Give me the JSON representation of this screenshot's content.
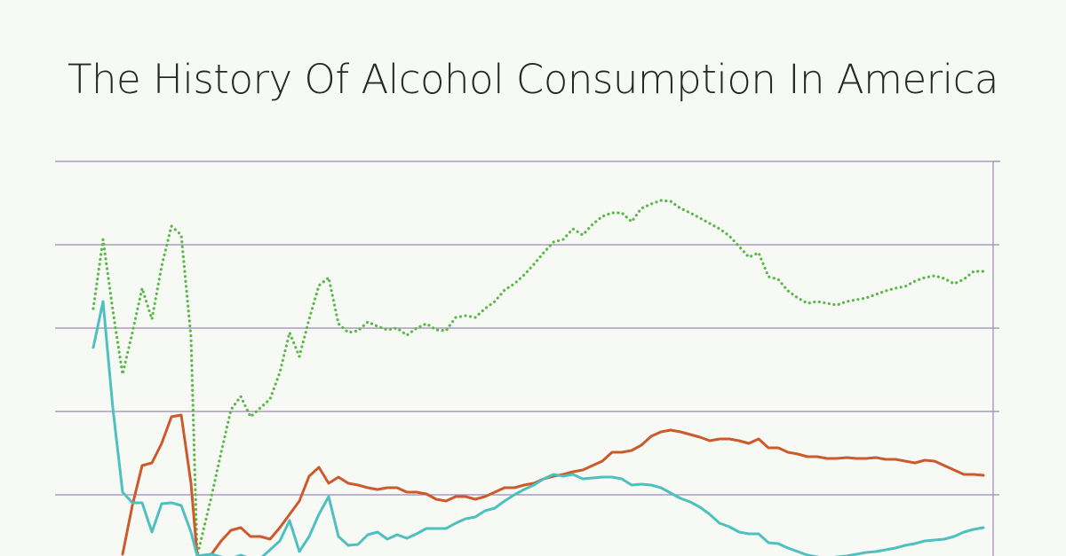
{
  "chart_data": {
    "type": "line",
    "title": "The History Of Alcohol Consumption In America",
    "x": [
      0,
      11,
      22,
      33,
      44,
      55,
      66,
      77,
      88,
      99,
      110,
      117,
      133,
      144,
      155,
      166,
      177,
      188,
      199,
      210,
      221,
      232,
      243,
      254,
      265,
      276,
      287,
      298,
      309,
      320,
      331,
      342,
      353,
      364,
      375,
      386,
      397,
      408,
      419,
      430,
      441,
      452,
      463,
      474,
      485,
      496,
      507,
      518,
      529,
      540,
      551,
      562,
      573,
      584,
      595,
      606,
      617,
      628,
      639,
      650,
      661,
      672,
      683,
      694,
      705,
      716,
      727,
      738,
      749,
      760,
      771,
      782,
      793,
      804,
      815,
      826,
      837,
      848,
      859,
      870,
      881,
      892,
      903,
      914,
      925,
      936,
      947,
      958,
      969,
      980,
      991,
      1002
    ],
    "xlim": [
      -43,
      1020
    ],
    "ylim": [
      25,
      470
    ],
    "yticks": [
      94,
      188,
      282,
      376,
      470
    ],
    "grid": true,
    "series": [
      {
        "color": "#5cb84a",
        "style": "dotted",
        "values": [
          304,
          382,
          302,
          230,
          277,
          327,
          292,
          352,
          397,
          387,
          272,
          25,
          92,
          142,
          190,
          205,
          182,
          192,
          202,
          232,
          277,
          250,
          292,
          330,
          339,
          287,
          277,
          279,
          289,
          284,
          280,
          282,
          274,
          282,
          287,
          280,
          279,
          294,
          296,
          294,
          304,
          312,
          325,
          332,
          342,
          354,
          367,
          379,
          382,
          394,
          387,
          399,
          408,
          412,
          412,
          402,
          417,
          422,
          426,
          425,
          417,
          412,
          406,
          400,
          394,
          386,
          374,
          362,
          367,
          340,
          337,
          324,
          316,
          310,
          312,
          310,
          308,
          312,
          314,
          316,
          320,
          324,
          327,
          329,
          335,
          339,
          341,
          338,
          332,
          337,
          346,
          346
        ]
      },
      {
        "color": "#cc5a2c",
        "style": "solid",
        "values": [
          null,
          null,
          null,
          27,
          82,
          127,
          130,
          152,
          182,
          184,
          107,
          25,
          27,
          42,
          54,
          57,
          47,
          47,
          44,
          57,
          72,
          87,
          115,
          125,
          107,
          114,
          107,
          105,
          102,
          100,
          102,
          102,
          97,
          97,
          95,
          89,
          87,
          92,
          92,
          89,
          92,
          97,
          102,
          102,
          105,
          107,
          112,
          115,
          117,
          120,
          122,
          127,
          132,
          142,
          142,
          144,
          150,
          160,
          165,
          167,
          165,
          162,
          159,
          155,
          157,
          157,
          155,
          152,
          157,
          147,
          147,
          142,
          140,
          137,
          137,
          135,
          135,
          136,
          135,
          135,
          136,
          134,
          134,
          132,
          130,
          133,
          132,
          127,
          122,
          117,
          117,
          116
        ]
      },
      {
        "color": "#4fc0c0",
        "style": "solid",
        "values": [
          260,
          312,
          192,
          97,
          85,
          85,
          52,
          84,
          85,
          82,
          52,
          25,
          27,
          24,
          22,
          26,
          22,
          22,
          32,
          42,
          65,
          30,
          47,
          72,
          92,
          47,
          37,
          38,
          49,
          52,
          44,
          49,
          45,
          50,
          56,
          56,
          56,
          62,
          67,
          69,
          76,
          79,
          87,
          94,
          100,
          105,
          112,
          117,
          115,
          117,
          112,
          113,
          114,
          114,
          112,
          105,
          106,
          105,
          102,
          96,
          90,
          86,
          80,
          72,
          62,
          58,
          52,
          50,
          50,
          40,
          39,
          34,
          30,
          26,
          24,
          22,
          24,
          25,
          27,
          29,
          30,
          32,
          34,
          37,
          39,
          42,
          43,
          44,
          47,
          52,
          55,
          57
        ]
      }
    ]
  }
}
